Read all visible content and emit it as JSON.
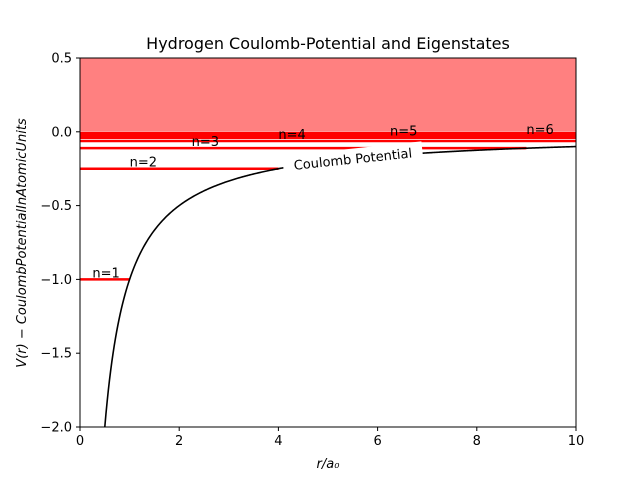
{
  "chart_data": {
    "type": "line",
    "title": "Hydrogen Coulomb-Potential and Eigenstates",
    "xlabel": "r/a₀",
    "ylabel": "V(r) − CoulombPotentialInAtomicUnits",
    "xlim": [
      0,
      10
    ],
    "ylim": [
      -2.0,
      0.5
    ],
    "x_ticks": [
      "0",
      "2",
      "4",
      "6",
      "8",
      "10"
    ],
    "y_ticks": [
      "0.5",
      "0.0",
      "−0.5",
      "−1.0",
      "−1.5",
      "−2.0"
    ],
    "continuum_region": {
      "from": 0,
      "to": 0.5,
      "color": "#ff8080"
    },
    "potential_curve": {
      "name": "Coulomb Potential",
      "formula": "V(r) = -1/r",
      "color": "#000000",
      "x_start": 0.5,
      "x_end": 10
    },
    "energy_levels": [
      {
        "name": "n=1",
        "energy": -1.0,
        "x_from": 0,
        "x_to": 1
      },
      {
        "name": "n=2",
        "energy": -0.25,
        "x_from": 0,
        "x_to": 4
      },
      {
        "name": "n=3",
        "energy": -0.111,
        "x_from": 0,
        "x_to": 9
      },
      {
        "name": "n=4",
        "energy": -0.0625,
        "x_from": 0,
        "x_to": 10
      },
      {
        "name": "n=5",
        "energy": -0.04,
        "x_from": 0,
        "x_to": 10
      },
      {
        "name": "n=6",
        "energy": -0.0278,
        "x_from": 0,
        "x_to": 10
      },
      {
        "name": "",
        "energy": -0.0204,
        "x_from": 0,
        "x_to": 10
      },
      {
        "name": "",
        "energy": -0.0156,
        "x_from": 0,
        "x_to": 10
      },
      {
        "name": "",
        "energy": -0.0123,
        "x_from": 0,
        "x_to": 10
      },
      {
        "name": "",
        "energy": -0.01,
        "x_from": 0,
        "x_to": 10
      }
    ],
    "level_color": "#ff0000",
    "grid": false,
    "legend": "none"
  }
}
